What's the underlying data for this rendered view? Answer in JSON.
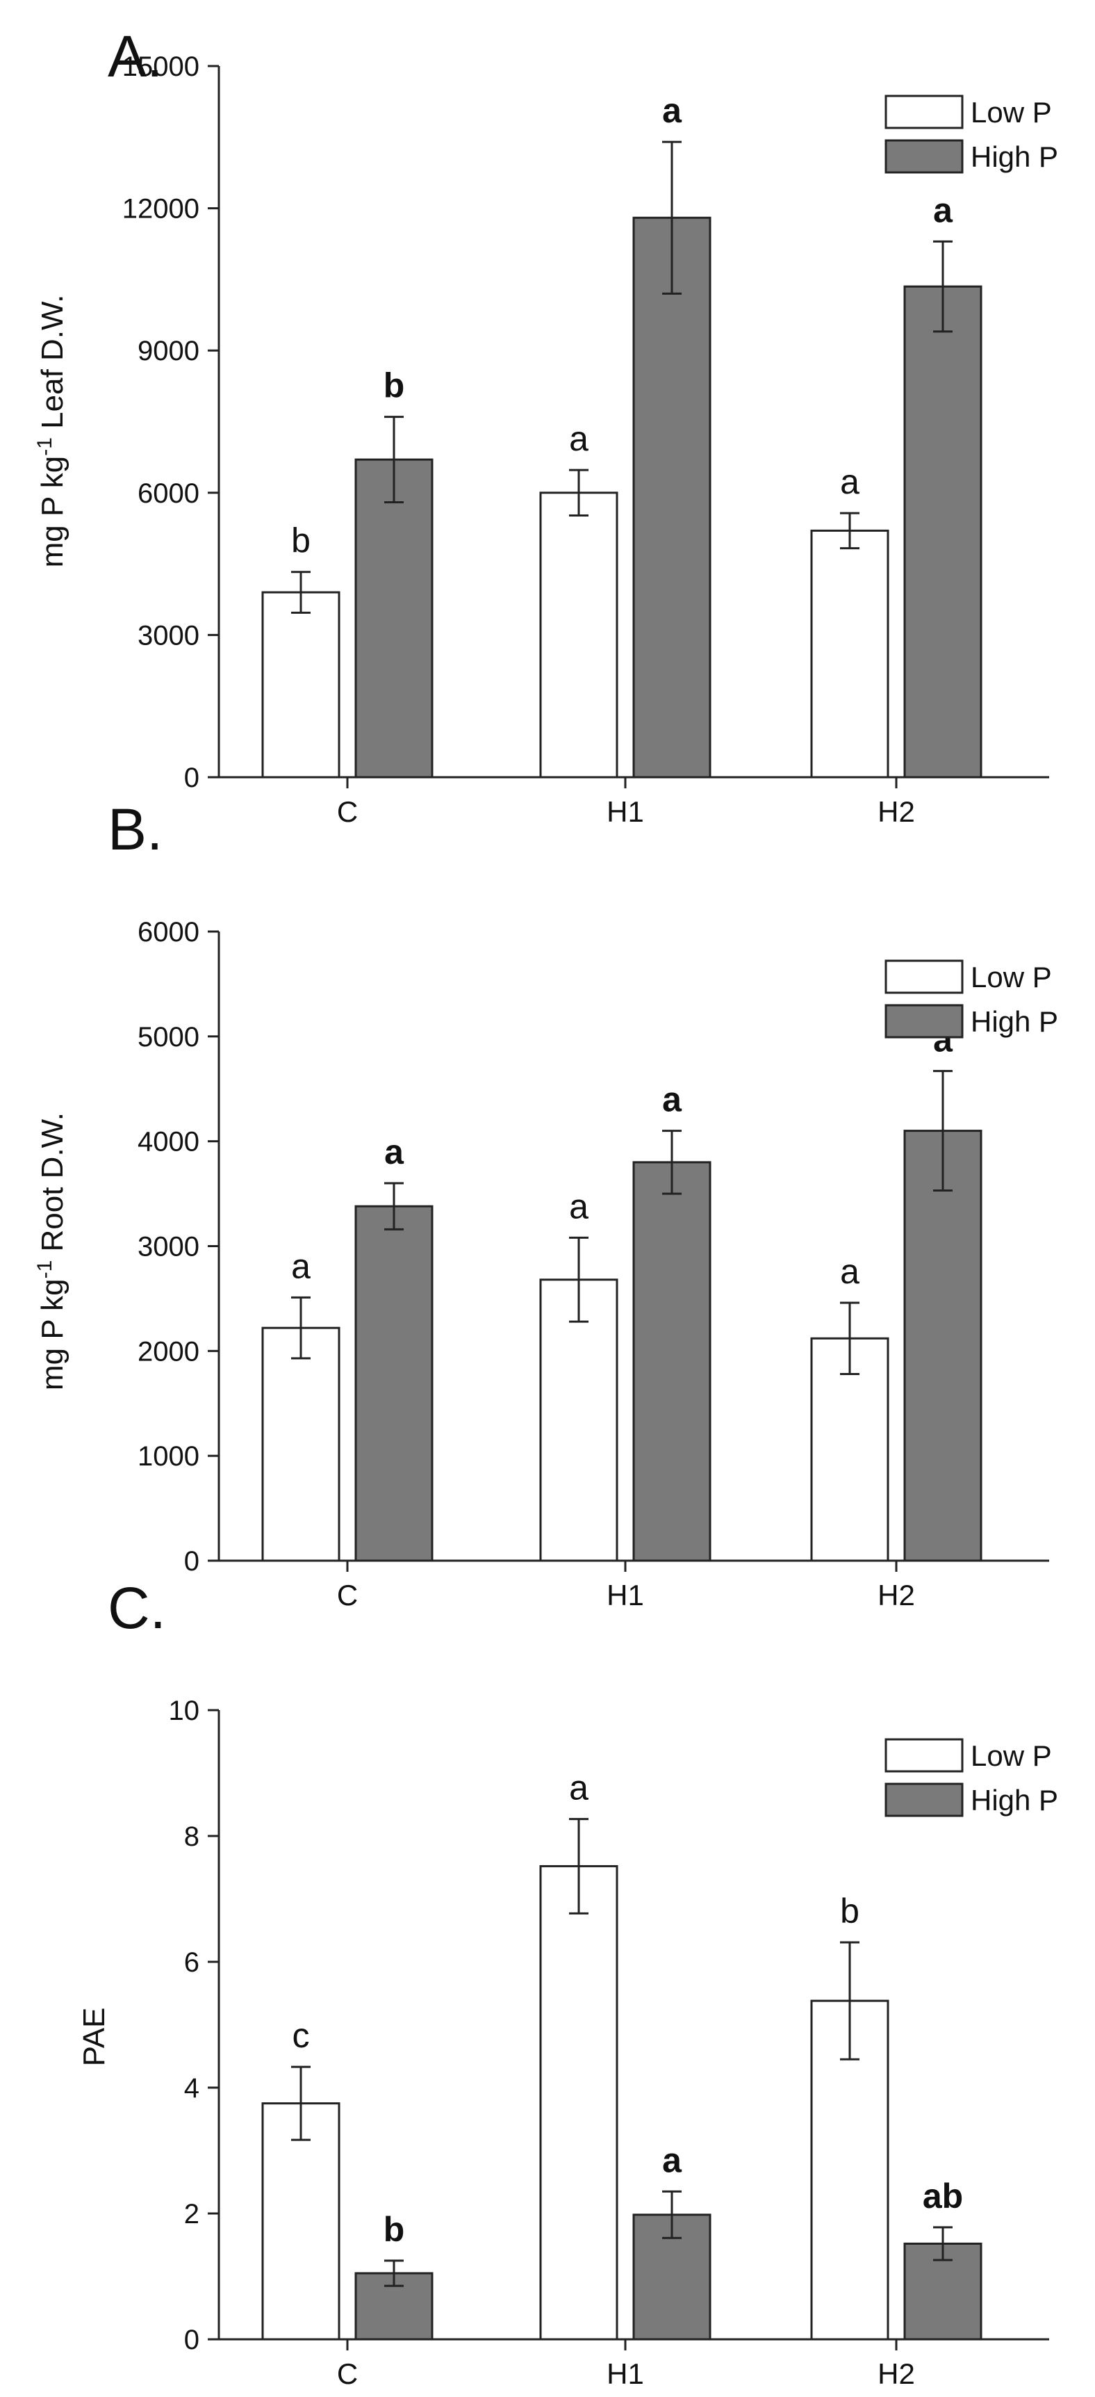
{
  "figure": {
    "colors": {
      "low": "#ffffff",
      "high": "#7a7a7a",
      "stroke": "#222222"
    }
  },
  "chart_data": [
    {
      "type": "bar",
      "panel": "A.",
      "ylabel": "mg P kg-1 Leaf D.W.",
      "ylabel_parts": {
        "pre": "mg P kg",
        "sup": "-1",
        "post": " Leaf D.W."
      },
      "categories": [
        "C",
        "H1",
        "H2"
      ],
      "ylim": [
        0,
        15000
      ],
      "yticks": [
        0,
        3000,
        6000,
        9000,
        12000,
        15000
      ],
      "ytick_labels": [
        "0",
        "3000",
        "6000",
        "9000",
        "12000",
        "15000"
      ],
      "legend": [
        "Low P",
        "High P"
      ],
      "series": [
        {
          "name": "Low P",
          "values": [
            3900,
            6000,
            5200
          ],
          "errors": [
            430,
            480,
            370
          ],
          "labels": [
            "b",
            "a",
            "a"
          ],
          "bold": false
        },
        {
          "name": "High P",
          "values": [
            6700,
            11800,
            10350
          ],
          "errors": [
            900,
            1600,
            950
          ],
          "labels": [
            "b",
            "a",
            "a"
          ],
          "bold": true
        }
      ]
    },
    {
      "type": "bar",
      "panel": "B.",
      "ylabel": "mg P kg-1 Root D.W.",
      "ylabel_parts": {
        "pre": "mg P kg",
        "sup": "-1",
        "post": " Root D.W."
      },
      "categories": [
        "C",
        "H1",
        "H2"
      ],
      "ylim": [
        0,
        6000
      ],
      "yticks": [
        0,
        1000,
        2000,
        3000,
        4000,
        5000,
        6000
      ],
      "ytick_labels": [
        "0",
        "1000",
        "2000",
        "3000",
        "4000",
        "5000",
        "6000"
      ],
      "legend": [
        "Low P",
        "High P"
      ],
      "series": [
        {
          "name": "Low P",
          "values": [
            2220,
            2680,
            2120
          ],
          "errors": [
            290,
            400,
            340
          ],
          "labels": [
            "a",
            "a",
            "a"
          ],
          "bold": false
        },
        {
          "name": "High P",
          "values": [
            3380,
            3800,
            4100
          ],
          "errors": [
            220,
            300,
            570
          ],
          "labels": [
            "a",
            "a",
            "a"
          ],
          "bold": true
        }
      ]
    },
    {
      "type": "bar",
      "panel": "C.",
      "ylabel": "PAE",
      "ylabel_parts": {
        "pre": "PAE",
        "sup": "",
        "post": ""
      },
      "categories": [
        "C",
        "H1",
        "H2"
      ],
      "ylim": [
        0,
        10
      ],
      "yticks": [
        0,
        2,
        4,
        6,
        8,
        10
      ],
      "ytick_labels": [
        "0",
        "2",
        "4",
        "6",
        "8",
        "10"
      ],
      "legend": [
        "Low P",
        "High P"
      ],
      "series": [
        {
          "name": "Low P",
          "values": [
            3.75,
            7.52,
            5.38
          ],
          "errors": [
            0.58,
            0.75,
            0.93
          ],
          "labels": [
            "c",
            "a",
            "b"
          ],
          "bold": false
        },
        {
          "name": "High P",
          "values": [
            1.05,
            1.98,
            1.52
          ],
          "errors": [
            0.2,
            0.37,
            0.26
          ],
          "labels": [
            "b",
            "a",
            "ab"
          ],
          "bold": true
        }
      ]
    }
  ]
}
